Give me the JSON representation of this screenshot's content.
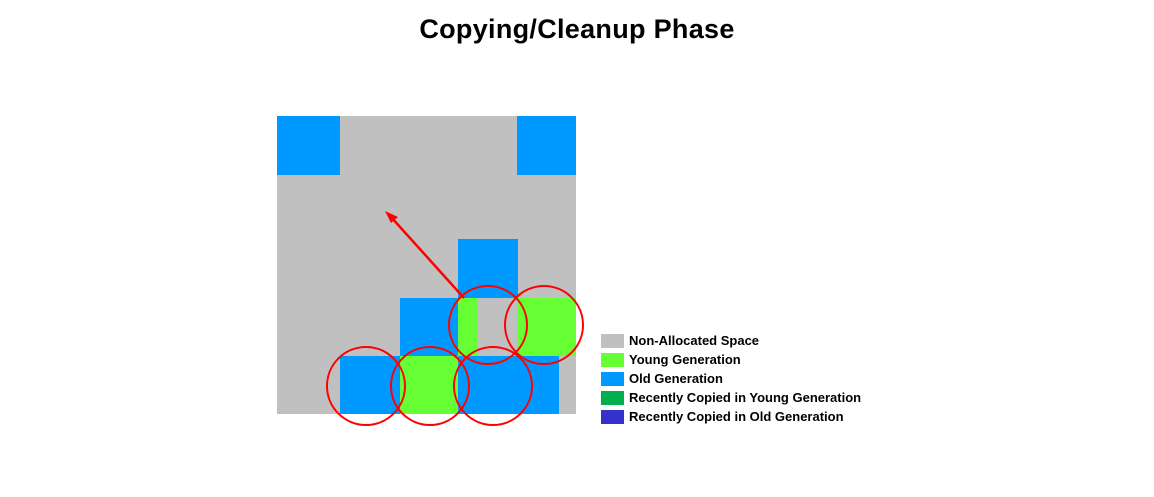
{
  "title": "Copying/Cleanup Phase",
  "colors": {
    "non_allocated": "#c0c0c0",
    "young": "#66ff33",
    "old": "#0099ff",
    "recent_young": "#00b050",
    "recent_old": "#3333cc",
    "highlight": "#ff0000"
  },
  "legend": [
    {
      "label": "Non-Allocated Space",
      "color": "#c0c0c0"
    },
    {
      "label": "Young Generation",
      "color": "#66ff33"
    },
    {
      "label": "Old Generation",
      "color": "#0099ff"
    },
    {
      "label": "Recently Copied in Young Generation",
      "color": "#00b050"
    },
    {
      "label": "Recently Copied in Old Generation",
      "color": "#3333cc"
    }
  ]
}
